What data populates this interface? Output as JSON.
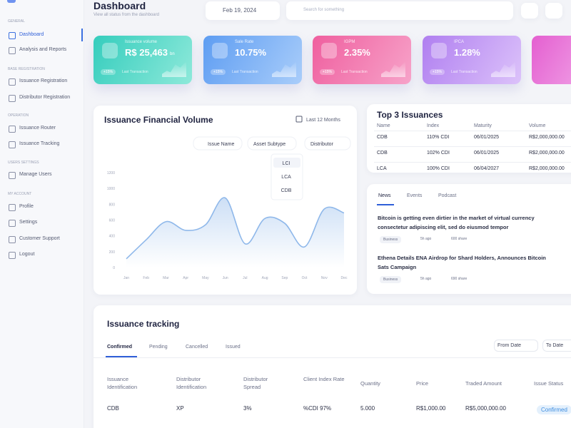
{
  "sidebar": {
    "sections": [
      {
        "title": "GENERAL",
        "items": [
          "Dashboard",
          "Analysis and Reports"
        ]
      },
      {
        "title": "BASE REGISTRATION",
        "items": [
          "Issuance Registration",
          "Distributor Registration"
        ]
      },
      {
        "title": "OPERATION",
        "items": [
          "Issuance Router",
          "Issuance Tracking"
        ]
      },
      {
        "title": "USERS SETTINGS",
        "items": [
          "Manage Users"
        ]
      },
      {
        "title": "MY ACCOUNT",
        "items": [
          "Profile",
          "Settings",
          "Customer Support",
          "Logout"
        ]
      }
    ]
  },
  "header": {
    "title": "Dashboard",
    "subtitle": "View all status from the dashboard",
    "date": "Feb 19, 2024",
    "search_placeholder": "Search for something"
  },
  "kpi_cards": [
    {
      "label": "Issuance volume",
      "value": "R$ 25,463",
      "unit": "bn",
      "badge": "+15%",
      "note": "Last Transaction"
    },
    {
      "label": "Sale Rate",
      "value": "10.75%",
      "badge": "+15%",
      "note": "Last Transaction"
    },
    {
      "label": "IGPM",
      "value": "2.35%",
      "badge": "+15%",
      "note": "Last Transaction"
    },
    {
      "label": "IPCA",
      "value": "1.28%",
      "badge": "+15%",
      "note": "Last Transaction"
    }
  ],
  "chart": {
    "type": "line",
    "title": "Issuance Financial Volume",
    "period": "Last 12 Months",
    "filters": [
      "Issue Name",
      "Asset Subtype",
      "Distributor"
    ],
    "dropdown_options": [
      "LCI",
      "LCA",
      "CDB"
    ],
    "categories": [
      "Jan",
      "Feb",
      "Mar",
      "Apr",
      "May",
      "Jun",
      "Jul",
      "Aug",
      "Sep",
      "Oct",
      "Nov",
      "Dec"
    ],
    "values": [
      110,
      350,
      580,
      470,
      540,
      880,
      300,
      620,
      560,
      260,
      740,
      690
    ],
    "color": "#8fb8ea",
    "ylim": [
      0,
      1200
    ],
    "yticks": [
      0,
      200,
      400,
      600,
      800,
      1000,
      1200
    ]
  },
  "top_issuances": {
    "title": "Top 3 Issuances",
    "columns": [
      "Name",
      "Index",
      "Maturity",
      "Volume"
    ],
    "rows": [
      [
        "CDB",
        "110% CDI",
        "06/01/2025",
        "R$2,000,000.00"
      ],
      [
        "CDB",
        "102% CDI",
        "06/01/2025",
        "R$2,000,000.00"
      ],
      [
        "LCA",
        "100% CDI",
        "06/04/2027",
        "R$2,000,000.00"
      ]
    ]
  },
  "news": {
    "tabs": [
      "News",
      "Events",
      "Podcast"
    ],
    "items": [
      {
        "headline": "Bitcoin is getting even dirtier in the market of virtual currency consectetur adipiscing elit, sed do eiusmod tempor",
        "tag": "Business",
        "time": "5h ago",
        "shares": "600 share"
      },
      {
        "headline": "Ethena Details ENA Airdrop for Shard Holders, Announces Bitcoin Sats Campaign",
        "tag": "Business",
        "time": "5h ago",
        "shares": "690 share"
      }
    ]
  },
  "tracking": {
    "title": "Issuance tracking",
    "tabs": [
      "Confirmed",
      "Pending",
      "Cancelled",
      "Issued"
    ],
    "filters": [
      "From Date",
      "To Date"
    ],
    "columns": [
      "Issuance Identification",
      "Distributor Identification",
      "Distributor Spread",
      "Client Index Rate",
      "Quantity",
      "Price",
      "Traded Amount",
      "Issue Status"
    ],
    "rows": [
      [
        "CDB",
        "XP",
        "3%",
        "%CDI 97%",
        "5.000",
        "R$1,000.00",
        "R$5,000,000.00",
        "Confirmed"
      ]
    ]
  }
}
